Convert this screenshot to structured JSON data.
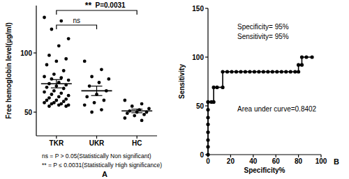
{
  "chart_data": [
    {
      "type": "scatter",
      "panel": "A",
      "categories": [
        "TKR",
        "UKR",
        "HC"
      ],
      "values": [
        [
          130,
          127,
          120,
          112,
          106,
          98,
          95,
          93,
          90,
          85,
          82,
          80,
          79,
          78,
          77,
          75,
          74,
          73,
          72,
          71,
          70,
          68,
          67,
          66,
          65,
          64,
          63,
          62,
          61,
          60,
          60,
          59,
          58,
          58,
          57,
          57,
          56,
          56,
          55,
          55
        ],
        [
          93,
          86,
          80,
          78,
          75,
          72,
          68,
          65,
          63,
          60,
          58,
          56,
          52,
          50
        ],
        [
          60,
          57,
          55,
          53,
          52,
          51,
          50,
          50,
          49,
          48,
          47,
          45,
          43
        ]
      ],
      "mean": [
        74,
        68,
        51
      ],
      "error": [
        3.5,
        4,
        1.5
      ],
      "ylabel": "Free hemoglobin level(µg/ml)",
      "ylim": [
        30,
        140
      ],
      "yticks": [
        50,
        100
      ],
      "color": "#000000",
      "marker": "circle",
      "grid": false,
      "brackets": [
        {
          "label": "ns",
          "between": [
            "TKR",
            "UKR"
          ]
        },
        {
          "label": "**",
          "note": "P=0.0031",
          "between": [
            "TKR",
            "HC"
          ]
        }
      ],
      "notes": [
        "ns = P > 0.05(Statistically Non significant)",
        "** = P ≤ 0.0031(Statistically High significance)"
      ]
    },
    {
      "type": "line",
      "panel": "B",
      "x": [
        0,
        0,
        0,
        0,
        0,
        0,
        0,
        0,
        3,
        5,
        5,
        8,
        13,
        13,
        17,
        21,
        25,
        29,
        33,
        37,
        41,
        45,
        49,
        53,
        57,
        61,
        65,
        69,
        73,
        77,
        80,
        80,
        83,
        83,
        87,
        92
      ],
      "series": [
        {
          "values": [
            0,
            8,
            15,
            23,
            31,
            38,
            46,
            54,
            54,
            54,
            69,
            69,
            69,
            85,
            85,
            85,
            85,
            85,
            85,
            85,
            85,
            85,
            85,
            85,
            85,
            85,
            85,
            85,
            85,
            85,
            85,
            92,
            92,
            100,
            100,
            100
          ],
          "color": "#000000",
          "marker": "circle"
        }
      ],
      "xlabel": "Specificity%",
      "ylabel": "Sensitivity",
      "xlim": [
        0,
        100
      ],
      "xticks": [
        0,
        20,
        40,
        60,
        80,
        100
      ],
      "ylim": [
        0,
        150
      ],
      "yticks": [
        0,
        50,
        100,
        150
      ],
      "grid": false,
      "annotations": [
        "Specificity= 95%",
        "Sensitivity= 95%",
        "Area under curve=0.8402"
      ]
    }
  ]
}
